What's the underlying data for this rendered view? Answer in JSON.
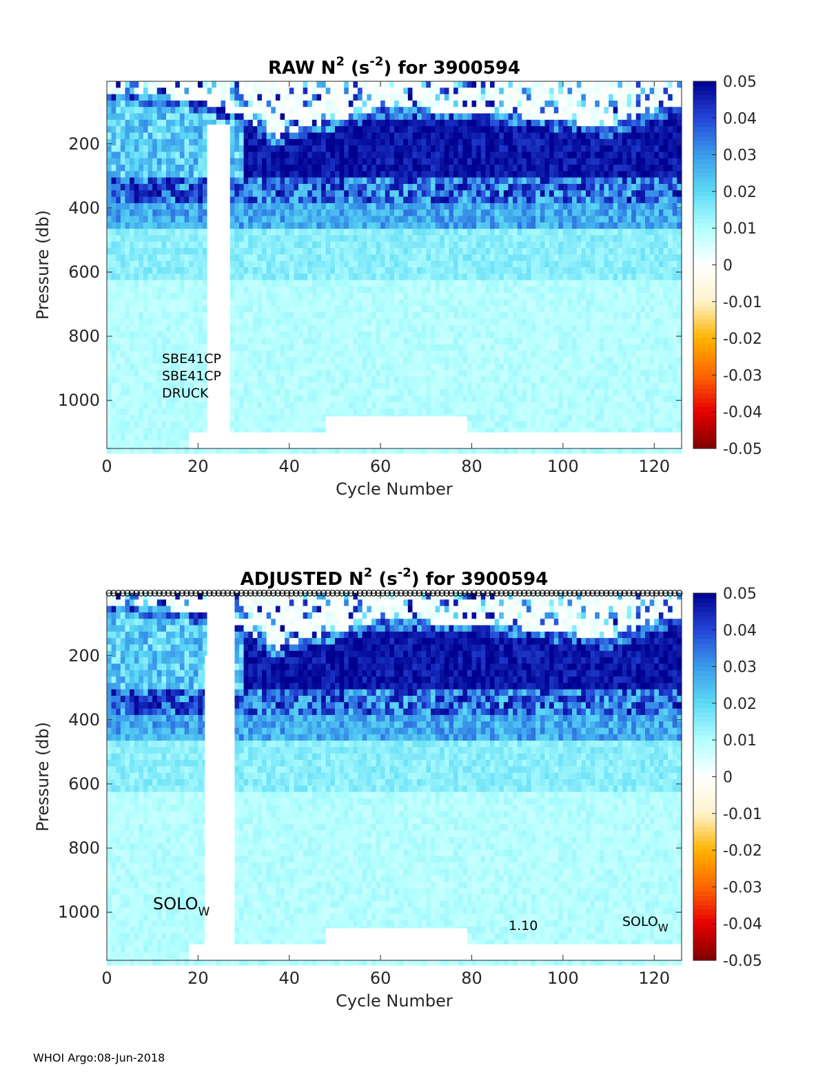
{
  "footer": "WHOI Argo:08-Jun-2018",
  "colors": {
    "colormap": [
      "#7f0000",
      "#e60000",
      "#ff6600",
      "#ffb300",
      "#fff3cc",
      "#ffffff",
      "#b3ffff",
      "#5ddaf5",
      "#3a9bea",
      "#2345d6",
      "#00008f"
    ],
    "axis": "#262626",
    "gap": "#ffffff"
  },
  "chart_data": [
    {
      "type": "heatmap",
      "title": "RAW N2 (s-2) for 3900594",
      "title_parts": {
        "pre": "RAW N",
        "sup1": "2",
        "mid": " (s",
        "sup2": "-2",
        "post": ") for 3900594"
      },
      "xlabel": "Cycle Number",
      "ylabel": "Pressure (db)",
      "xlim": [
        0,
        126
      ],
      "ylim": [
        1150,
        5
      ],
      "xticks": [
        "0",
        "20",
        "40",
        "60",
        "80",
        "100",
        "120"
      ],
      "yticks": [
        "200",
        "400",
        "600",
        "800",
        "1000"
      ],
      "clim": [
        -0.05,
        0.05
      ],
      "colorbar_ticks": [
        "0.05",
        "0.04",
        "0.03",
        "0.02",
        "0.01",
        "0",
        "-0.01",
        "-0.02",
        "-0.03",
        "-0.04",
        "-0.05"
      ],
      "annotations": [
        "SBE41CP",
        "SBE41CP",
        "DRUCK"
      ],
      "layers_description": {
        "surface_0_50db": 0.0,
        "thermocline_150_300db": 0.05,
        "upper_300_450db": 0.03,
        "mid_450_600db": 0.015,
        "deep_600_1100db": 0.009
      },
      "mixed_layer_bottom_db": [
        [
          0,
          60
        ],
        [
          10,
          70
        ],
        [
          20,
          90
        ],
        [
          30,
          140
        ],
        [
          36,
          200
        ],
        [
          45,
          160
        ],
        [
          60,
          110
        ],
        [
          80,
          120
        ],
        [
          100,
          150
        ],
        [
          110,
          170
        ],
        [
          120,
          110
        ],
        [
          126,
          100
        ]
      ],
      "missing_data": [
        {
          "cycles": [
            22,
            27
          ],
          "from_db": 140,
          "note": "data gap"
        },
        {
          "cycles": [
            18,
            22
          ],
          "from_db": 1100
        },
        {
          "cycles": [
            27,
            126
          ],
          "from_db": 1100
        },
        {
          "cycles": [
            48,
            79
          ],
          "from_db": 1050
        }
      ],
      "markers": false
    },
    {
      "type": "heatmap",
      "title": "ADJUSTED N2 (s-2) for 3900594",
      "title_parts": {
        "pre": "ADJUSTED N",
        "sup1": "2",
        "mid": " (s",
        "sup2": "-2",
        "post": ") for 3900594"
      },
      "xlabel": "Cycle Number",
      "ylabel": "Pressure (db)",
      "xlim": [
        0,
        126
      ],
      "ylim": [
        1150,
        5
      ],
      "xticks": [
        "0",
        "20",
        "40",
        "60",
        "80",
        "100",
        "120"
      ],
      "yticks": [
        "200",
        "400",
        "600",
        "800",
        "1000"
      ],
      "clim": [
        -0.05,
        0.05
      ],
      "colorbar_ticks": [
        "0.05",
        "0.04",
        "0.03",
        "0.02",
        "0.01",
        "0",
        "-0.01",
        "-0.02",
        "-0.03",
        "-0.04",
        "-0.05"
      ],
      "annotations": [
        {
          "text": "SOLO",
          "sub": "W",
          "at": [
            10,
            1010
          ]
        },
        {
          "text": "1.10",
          "at": [
            88,
            1050
          ]
        },
        {
          "text": "SOLO",
          "sub": "W",
          "at": [
            113,
            1050
          ]
        }
      ],
      "missing_data": [
        {
          "cycles": [
            22,
            28
          ],
          "from_db": 5
        },
        {
          "cycles": [
            18,
            22
          ],
          "from_db": 1100
        },
        {
          "cycles": [
            28,
            126
          ],
          "from_db": 1100
        },
        {
          "cycles": [
            48,
            79
          ],
          "from_db": 1050
        }
      ],
      "markers": true,
      "marker_cycles": [
        1,
        126
      ]
    }
  ]
}
